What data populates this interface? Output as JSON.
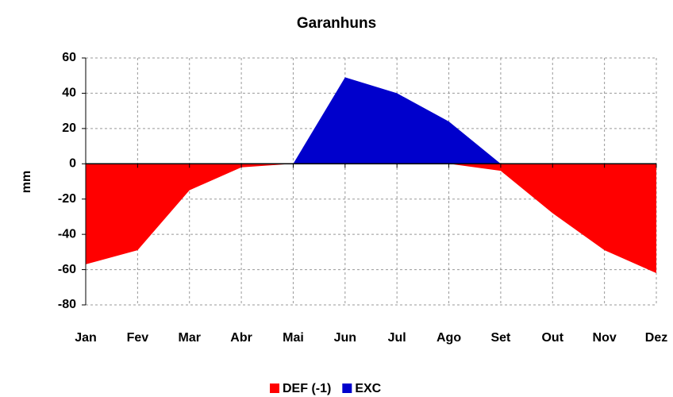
{
  "chart_data": {
    "type": "area",
    "title": "Garanhuns",
    "ylabel": "mm",
    "categories": [
      "Jan",
      "Fev",
      "Mar",
      "Abr",
      "Mai",
      "Jun",
      "Jul",
      "Ago",
      "Set",
      "Out",
      "Nov",
      "Dez"
    ],
    "series": [
      {
        "name": "DEF (-1)",
        "color": "#ff0000",
        "values": [
          -57,
          -49,
          -15,
          -2,
          0,
          0,
          0,
          0,
          -4,
          -28,
          -49,
          -62
        ]
      },
      {
        "name": "EXC",
        "color": "#0000cc",
        "values": [
          0,
          0,
          0,
          0,
          0,
          49,
          40,
          24,
          0,
          0,
          0,
          0
        ]
      }
    ],
    "ylim": [
      -80,
      60
    ],
    "yticks": [
      -80,
      -60,
      -40,
      -20,
      0,
      20,
      40,
      60
    ],
    "grid": true,
    "legend": "bottom"
  }
}
